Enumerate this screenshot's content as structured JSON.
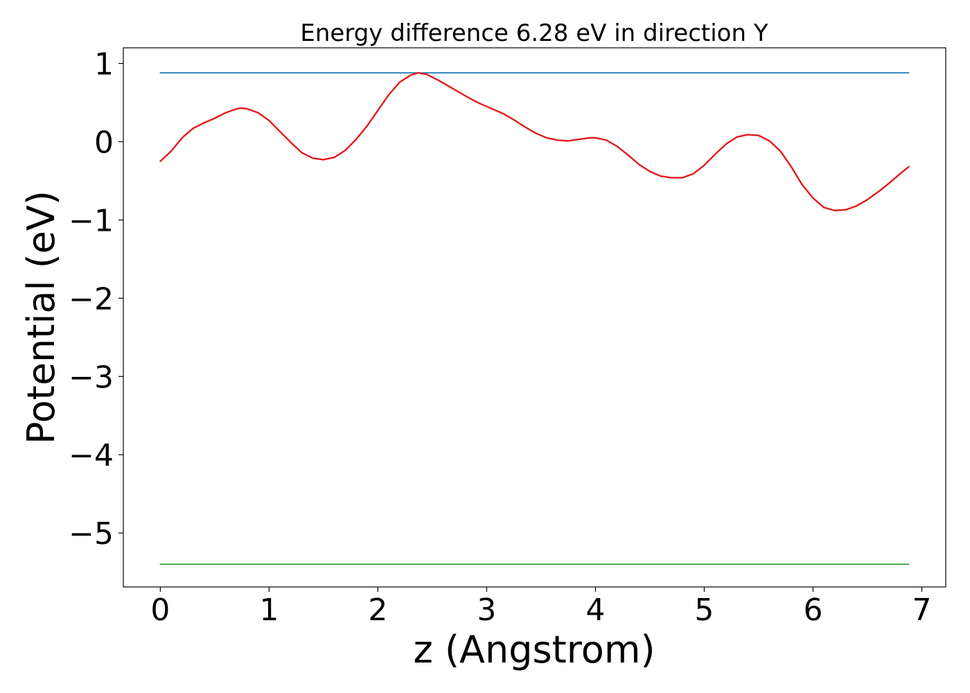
{
  "chart_data": {
    "type": "line",
    "title": "Energy difference 6.28 eV in direction Y",
    "xlabel": "z (Angstrom)",
    "ylabel": "Potential (eV)",
    "xlim": [
      -0.34,
      7.22
    ],
    "ylim": [
      -5.69,
      1.2
    ],
    "xticks": [
      0,
      1,
      2,
      3,
      4,
      5,
      6,
      7
    ],
    "xtick_labels": [
      "0",
      "1",
      "2",
      "3",
      "4",
      "5",
      "6",
      "7"
    ],
    "yticks": [
      1,
      0,
      -1,
      -2,
      -3,
      -4,
      -5
    ],
    "ytick_labels": [
      "1",
      "0",
      "−1",
      "−2",
      "−3",
      "−4",
      "−5"
    ],
    "grid": false,
    "legend": false,
    "series": [
      {
        "color": "#1f77b4",
        "x": [
          0,
          6.88
        ],
        "y": [
          0.88,
          0.88
        ]
      },
      {
        "color": "#2ca02c",
        "x": [
          0,
          6.88
        ],
        "y": [
          -5.4,
          -5.4
        ]
      },
      {
        "color": "#e31a1c",
        "x": [
          0,
          0.1,
          0.2,
          0.3,
          0.4,
          0.5,
          0.6,
          0.7,
          0.75,
          0.8,
          0.9,
          1.0,
          1.1,
          1.2,
          1.3,
          1.4,
          1.5,
          1.6,
          1.7,
          1.8,
          1.9,
          2.0,
          2.1,
          2.2,
          2.3,
          2.37,
          2.45,
          2.55,
          2.65,
          2.75,
          2.85,
          2.95,
          3.05,
          3.15,
          3.25,
          3.35,
          3.45,
          3.55,
          3.65,
          3.75,
          3.85,
          3.95,
          4.0,
          4.1,
          4.2,
          4.3,
          4.4,
          4.5,
          4.6,
          4.7,
          4.8,
          4.9,
          5.0,
          5.1,
          5.2,
          5.3,
          5.4,
          5.5,
          5.6,
          5.7,
          5.8,
          5.9,
          6.0,
          6.1,
          6.2,
          6.3,
          6.4,
          6.5,
          6.6,
          6.7,
          6.8,
          6.88
        ],
        "y": [
          -0.25,
          -0.12,
          0.05,
          0.17,
          0.24,
          0.3,
          0.37,
          0.42,
          0.43,
          0.42,
          0.37,
          0.27,
          0.13,
          -0.01,
          -0.14,
          -0.21,
          -0.23,
          -0.2,
          -0.11,
          0.03,
          0.2,
          0.4,
          0.6,
          0.76,
          0.85,
          0.88,
          0.86,
          0.79,
          0.71,
          0.63,
          0.55,
          0.48,
          0.42,
          0.36,
          0.28,
          0.19,
          0.11,
          0.05,
          0.02,
          0.01,
          0.03,
          0.05,
          0.05,
          0.02,
          -0.06,
          -0.17,
          -0.29,
          -0.38,
          -0.44,
          -0.46,
          -0.46,
          -0.41,
          -0.3,
          -0.16,
          -0.03,
          0.06,
          0.09,
          0.08,
          0.01,
          -0.12,
          -0.32,
          -0.55,
          -0.72,
          -0.84,
          -0.88,
          -0.87,
          -0.82,
          -0.74,
          -0.64,
          -0.53,
          -0.41,
          -0.32
        ]
      }
    ]
  }
}
